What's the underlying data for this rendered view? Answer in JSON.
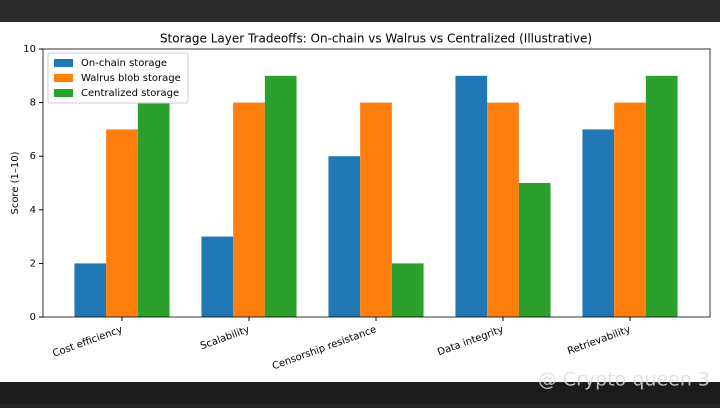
{
  "chart_data": {
    "type": "bar",
    "title": "Storage Layer Tradeoffs: On-chain vs Walrus vs Centralized (Illustrative)",
    "ylabel": "Score (1–10)",
    "categories": [
      "Cost efficiency",
      "Scalability",
      "Censorship resistance",
      "Data integrity",
      "Retrievability"
    ],
    "series": [
      {
        "name": "On-chain storage",
        "color": "#1f77b4",
        "values": [
          2,
          3,
          6,
          9,
          7
        ]
      },
      {
        "name": "Walrus blob storage",
        "color": "#ff7f0e",
        "values": [
          7,
          8,
          8,
          8,
          8
        ]
      },
      {
        "name": "Centralized storage",
        "color": "#2ca02c",
        "values": [
          8,
          9,
          2,
          5,
          9
        ]
      }
    ],
    "ylim": [
      0,
      10
    ],
    "yticks": [
      0,
      2,
      4,
      6,
      8,
      10
    ],
    "legend": "upper left"
  },
  "watermark": "@ Crypto queen 3"
}
